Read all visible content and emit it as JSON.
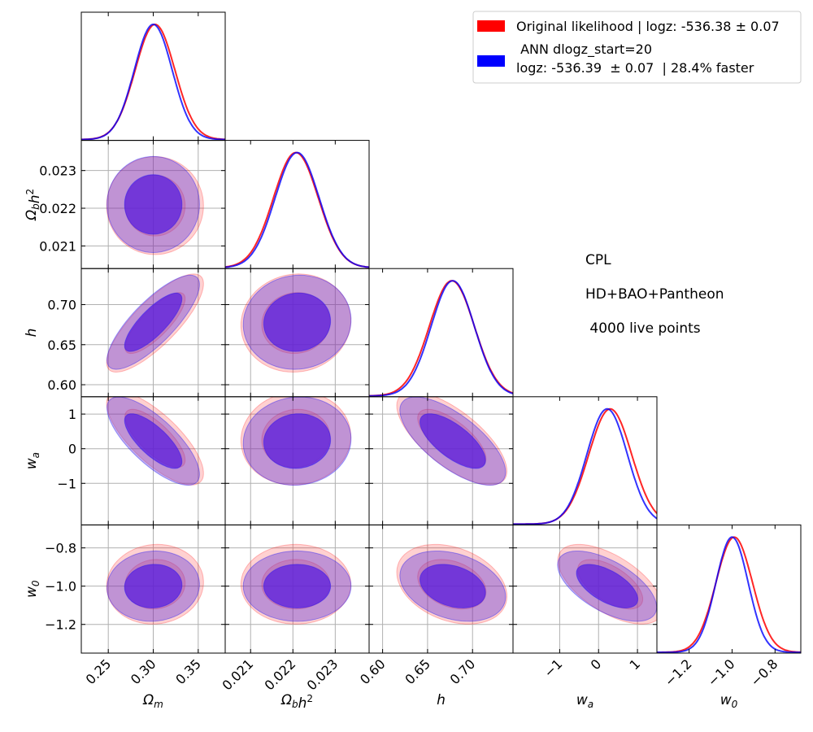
{
  "chart_data": {
    "type": "corner",
    "parameters": [
      {
        "key": "om",
        "label": "Ω_m",
        "range": [
          0.22,
          0.38
        ],
        "ticks": [
          0.25,
          0.3,
          0.35
        ],
        "tick_labels": [
          "0.25",
          "0.30",
          "0.35"
        ]
      },
      {
        "key": "obh2",
        "label": "Ω_b h^2",
        "range": [
          0.0204,
          0.0238
        ],
        "ticks": [
          0.021,
          0.022,
          0.023
        ],
        "tick_labels": [
          "0.021",
          "0.022",
          "0.023"
        ]
      },
      {
        "key": "h",
        "label": "h",
        "range": [
          0.585,
          0.745
        ],
        "ticks": [
          0.6,
          0.65,
          0.7
        ],
        "tick_labels": [
          "0.60",
          "0.65",
          "0.70"
        ]
      },
      {
        "key": "wa",
        "label": "w_a",
        "range": [
          -2.2,
          1.5
        ],
        "ticks": [
          -1,
          0,
          1
        ],
        "tick_labels": [
          "−1",
          "0",
          "1"
        ]
      },
      {
        "key": "w0",
        "label": "w_0",
        "range": [
          -1.35,
          -0.68
        ],
        "ticks": [
          -1.2,
          -1.0,
          -0.8
        ],
        "tick_labels": [
          "−1.2",
          "−1.0",
          "−0.8"
        ]
      }
    ],
    "series": [
      {
        "name": "Original likelihood | logz: -536.38  ± 0.07",
        "color": "#ff0000",
        "means": {
          "om": 0.302,
          "obh2": 0.02207,
          "h": 0.677,
          "wa": 0.3,
          "w0": -0.99
        },
        "sds": {
          "om": 0.022,
          "obh2": 0.00053,
          "h": 0.025,
          "wa": 0.55,
          "w0": 0.085
        }
      },
      {
        "name": "ANN dlogz_start=20\nlogz: -536.39  ± 0.07  | 28.4% faster",
        "color": "#0000ff",
        "means": {
          "om": 0.3,
          "obh2": 0.0221,
          "h": 0.678,
          "wa": 0.22,
          "w0": -1.0
        },
        "sds": {
          "om": 0.021,
          "obh2": 0.00052,
          "h": 0.024,
          "wa": 0.52,
          "w0": 0.075
        }
      }
    ],
    "correlations": {
      "obh2|om": 0.0,
      "h|om": 0.8,
      "h|obh2": 0.05,
      "wa|om": -0.75,
      "wa|obh2": 0.05,
      "wa|h": -0.7,
      "w0|om": 0.05,
      "w0|obh2": 0.0,
      "w0|h": -0.3,
      "w0|wa": -0.6
    },
    "grid": true,
    "legend_position": "top-right"
  },
  "legend": {
    "items": [
      {
        "line1": "Original likelihood | logz: -536.38  ± 0.07",
        "line2": "",
        "color": "#ff0000"
      },
      {
        "line1": " ANN dlogz_start=20",
        "line2": "logz: -536.39  ± 0.07  | 28.4% faster",
        "color": "#0000ff"
      }
    ]
  },
  "annotations": {
    "model": "CPL",
    "datasets": "HD+BAO+Pantheon",
    "live_points": " 4000 live points"
  },
  "colors": {
    "original": "#ff0000",
    "ann": "#0000ff",
    "overlap_fill": "#6a3fd8",
    "grid": "#b0b0b0"
  }
}
